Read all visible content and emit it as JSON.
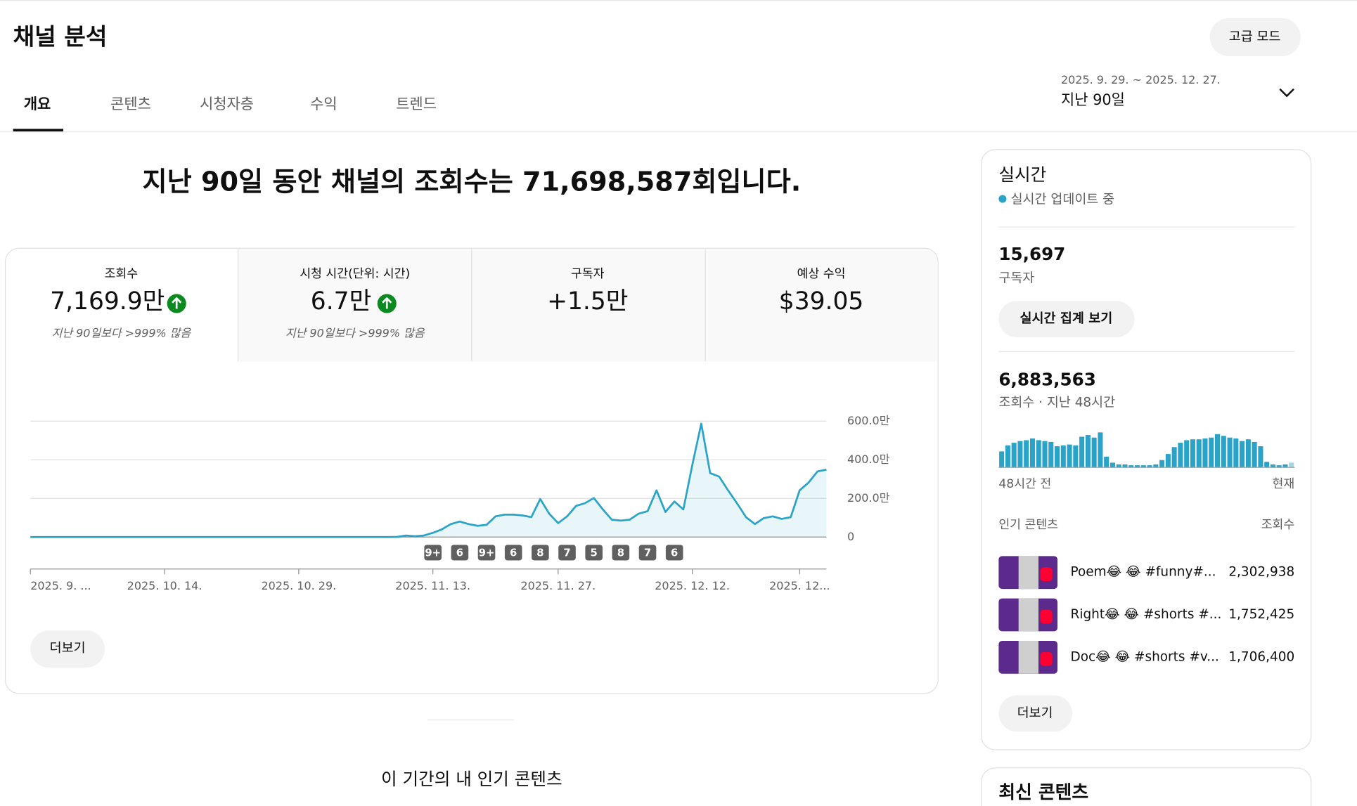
{
  "header": {
    "title": "채널 분석",
    "advanced_button": "고급 모드",
    "date_range": "2025. 9. 29. ~ 2025. 12. 27.",
    "period": "지난 90일"
  },
  "tabs": [
    "개요",
    "콘텐츠",
    "시청자층",
    "수익",
    "트렌드"
  ],
  "headline": "지난 90일 동안 채널의 조회수는 71,698,587회입니다.",
  "metrics": [
    {
      "label": "조회수",
      "value": "7,169.9만",
      "note": "지난 90일보다 >999% 많음"
    },
    {
      "label": "시청 시간(단위: 시간)",
      "value": "6.7만",
      "note": "지난 90일보다 >999% 많음"
    },
    {
      "label": "구독자",
      "value": "+1.5만"
    },
    {
      "label": "예상 수익",
      "value": "$39.05"
    }
  ],
  "chart_data": [
    {
      "type": "line",
      "categories": [
        "2025. 9. ...",
        null,
        null,
        null,
        null,
        null,
        null,
        null,
        null,
        null,
        null,
        null,
        null,
        null,
        null,
        "2025. 10. 14.",
        null,
        null,
        null,
        null,
        null,
        null,
        null,
        null,
        null,
        null,
        null,
        null,
        null,
        null,
        "2025. 10. 29.",
        null,
        null,
        null,
        null,
        null,
        null,
        null,
        null,
        null,
        null,
        null,
        null,
        null,
        null,
        "2025. 11. 13.",
        null,
        null,
        null,
        null,
        null,
        null,
        null,
        null,
        null,
        null,
        null,
        null,
        null,
        "2025. 11. 27.",
        null,
        null,
        null,
        null,
        null,
        null,
        null,
        null,
        null,
        null,
        null,
        null,
        null,
        null,
        "2025. 12. 12.",
        null,
        null,
        null,
        null,
        null,
        null,
        null,
        null,
        null,
        null,
        null,
        "2025. 12...",
        null,
        null,
        null
      ],
      "values": [
        0,
        0,
        0,
        0,
        0,
        0,
        0,
        0,
        0,
        0,
        0,
        0,
        0,
        0,
        0,
        0,
        0,
        0,
        0,
        0,
        0,
        0,
        0,
        0,
        0,
        0,
        0,
        0,
        0,
        0,
        0,
        0,
        0,
        0,
        0,
        0,
        0,
        0,
        0,
        0,
        0,
        1,
        8,
        4,
        8,
        22,
        40,
        67,
        80,
        67,
        58,
        63,
        107,
        116,
        116,
        112,
        103,
        197,
        121,
        72,
        107,
        161,
        175,
        202,
        143,
        90,
        85,
        90,
        121,
        134,
        242,
        130,
        184,
        143,
        372,
        587,
        331,
        313,
        242,
        175,
        103,
        67,
        98,
        107,
        94,
        103,
        242,
        282,
        340,
        349
      ],
      "color": "#2aa3c8",
      "area": true,
      "ylim": [
        0,
        600
      ],
      "yticks": [
        0,
        {
          "value": 200,
          "label": "200.0만"
        },
        {
          "value": 400,
          "label": "400.0만"
        },
        {
          "value": 600,
          "label": "600.0만"
        }
      ],
      "grid": true,
      "annotations": [
        "9+",
        "6",
        "9+",
        "6",
        "8",
        "7",
        "5",
        "8",
        "7",
        "6"
      ]
    },
    {
      "type": "bar",
      "categories": [
        "48시간 전",
        null,
        null,
        null,
        null,
        null,
        null,
        null,
        null,
        null,
        null,
        null,
        null,
        null,
        null,
        null,
        null,
        null,
        null,
        null,
        null,
        null,
        null,
        null,
        null,
        null,
        null,
        null,
        null,
        null,
        null,
        null,
        null,
        null,
        null,
        null,
        null,
        null,
        null,
        null,
        null,
        null,
        null,
        null,
        null,
        null,
        null,
        "현재"
      ],
      "values": [
        18,
        25,
        28,
        30,
        31,
        33,
        31,
        30,
        29,
        24,
        25,
        26,
        25,
        35,
        37,
        34,
        40,
        12,
        5,
        3,
        3,
        2,
        2,
        2,
        2,
        3,
        8,
        15,
        23,
        28,
        31,
        32,
        32,
        33,
        34,
        38,
        36,
        34,
        33,
        30,
        32,
        29,
        24,
        6,
        3,
        2,
        3,
        5
      ],
      "color": "#2aa3c8"
    }
  ],
  "more_button": "더보기",
  "top_content_heading": "이 기간의 내 인기 콘텐츠",
  "realtime": {
    "title": "실시간",
    "status": "실시간 업데이트 중",
    "subscribers": "15,697",
    "subscribers_label": "구독자",
    "button": "실시간 집계 보기",
    "views": "6,883,563",
    "views_label": "조회수 · 지난 48시간",
    "top_header": "인기 콘텐츠",
    "views_header": "조회수",
    "top_items": [
      {
        "title": "Poem😂 😂 #funny#...",
        "views": "2,302,938"
      },
      {
        "title": "Right😂 😂 #shorts #...",
        "views": "1,752,425"
      },
      {
        "title": "Doc😂 😂 #shorts #v...",
        "views": "1,706,400"
      }
    ],
    "more_button": "더보기"
  },
  "latest_heading": "최신 콘텐츠"
}
